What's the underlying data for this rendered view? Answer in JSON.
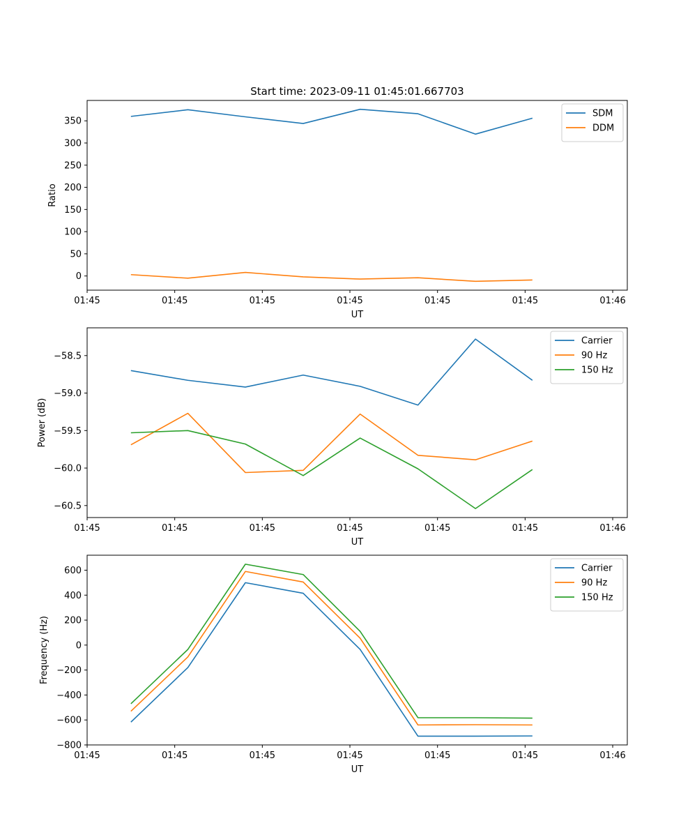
{
  "figure": {
    "title": "Start time: 2023-09-11 01:45:01.667703"
  },
  "chart_data": [
    {
      "type": "line",
      "title": "Start time: 2023-09-11 01:45:01.667703",
      "xlabel": "UT",
      "ylabel": "Ratio",
      "xlim": [
        0,
        18.5
      ],
      "x_ticks": [
        0,
        3,
        6,
        9,
        12,
        15,
        18
      ],
      "x_tick_labels": [
        "01:45",
        "01:45",
        "01:45",
        "01:45",
        "01:45",
        "01:45",
        "01:46"
      ],
      "ylim": [
        -32,
        396
      ],
      "y_ticks": [
        0,
        50,
        100,
        150,
        200,
        250,
        300,
        350
      ],
      "y_tick_labels": [
        "0",
        "50",
        "100",
        "150",
        "200",
        "250",
        "300",
        "350"
      ],
      "x": [
        1.5,
        3.45,
        5.42,
        7.4,
        9.35,
        11.33,
        13.3,
        15.25
      ],
      "legend": "upper right",
      "series": [
        {
          "name": "SDM",
          "color": "#1f77b4",
          "values": [
            360,
            375,
            359,
            344,
            376,
            366,
            320,
            356
          ]
        },
        {
          "name": "DDM",
          "color": "#ff7f0e",
          "values": [
            3,
            -5,
            8,
            -2,
            -7,
            -4,
            -12,
            -9
          ]
        }
      ]
    },
    {
      "type": "line",
      "xlabel": "UT",
      "ylabel": "Power (dB)",
      "xlim": [
        0,
        18.5
      ],
      "x_ticks": [
        0,
        3,
        6,
        9,
        12,
        15,
        18
      ],
      "x_tick_labels": [
        "01:45",
        "01:45",
        "01:45",
        "01:45",
        "01:45",
        "01:45",
        "01:46"
      ],
      "ylim": [
        -60.66,
        -58.13
      ],
      "y_ticks": [
        -60.5,
        -60.0,
        -59.5,
        -59.0,
        -58.5
      ],
      "y_tick_labels": [
        "−60.5",
        "−60.0",
        "−59.5",
        "−59.0",
        "−58.5"
      ],
      "x": [
        1.5,
        3.45,
        5.42,
        7.4,
        9.35,
        11.33,
        13.3,
        15.25
      ],
      "legend": "upper right",
      "series": [
        {
          "name": "Carrier",
          "color": "#1f77b4",
          "values": [
            -58.7,
            -58.83,
            -58.92,
            -58.76,
            -58.91,
            -59.16,
            -58.28,
            -58.83
          ]
        },
        {
          "name": "90 Hz",
          "color": "#ff7f0e",
          "values": [
            -59.69,
            -59.27,
            -60.06,
            -60.03,
            -59.28,
            -59.83,
            -59.89,
            -59.64
          ]
        },
        {
          "name": "150 Hz",
          "color": "#2ca02c",
          "values": [
            -59.53,
            -59.5,
            -59.68,
            -60.1,
            -59.6,
            -60.01,
            -60.54,
            -60.02
          ]
        }
      ]
    },
    {
      "type": "line",
      "xlabel": "UT",
      "ylabel": "Frequency (Hz)",
      "xlim": [
        0,
        18.5
      ],
      "x_ticks": [
        0,
        3,
        6,
        9,
        12,
        15,
        18
      ],
      "x_tick_labels": [
        "01:45",
        "01:45",
        "01:45",
        "01:45",
        "01:45",
        "01:45",
        "01:46"
      ],
      "ylim": [
        -800,
        720
      ],
      "y_ticks": [
        -800,
        -600,
        -400,
        -200,
        0,
        200,
        400,
        600
      ],
      "y_tick_labels": [
        "−800",
        "−600",
        "−400",
        "−200",
        "0",
        "200",
        "400",
        "600"
      ],
      "x": [
        1.5,
        3.45,
        5.42,
        7.4,
        9.35,
        11.33,
        13.3,
        15.25
      ],
      "legend": "upper right",
      "series": [
        {
          "name": "Carrier",
          "color": "#1f77b4",
          "values": [
            -617,
            -180,
            500,
            415,
            -35,
            -730,
            -730,
            -728
          ]
        },
        {
          "name": "90 Hz",
          "color": "#ff7f0e",
          "values": [
            -530,
            -95,
            590,
            505,
            55,
            -640,
            -638,
            -640
          ]
        },
        {
          "name": "150 Hz",
          "color": "#2ca02c",
          "values": [
            -470,
            -35,
            648,
            565,
            110,
            -582,
            -582,
            -585
          ]
        }
      ]
    }
  ]
}
